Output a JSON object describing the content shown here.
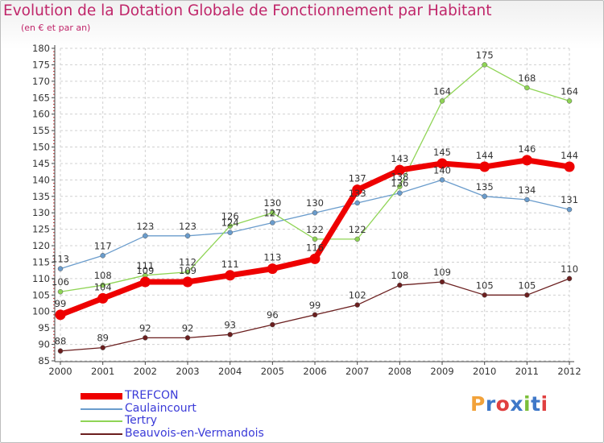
{
  "title": "Evolution de la Dotation Globale de Fonctionnement par Habitant",
  "subtitle": "(en € et par an)",
  "logo_text": "Proxiti",
  "colors": {
    "title": "#c0266a",
    "legend_text": "#3a3ad8",
    "grid": "#d0d0d0",
    "axis": "#444444",
    "label_text": "#333333"
  },
  "chart_data": {
    "type": "line",
    "x": [
      "2000",
      "2001",
      "2002",
      "2003",
      "2004",
      "2005",
      "2006",
      "2007",
      "2008",
      "2009",
      "2010",
      "2011",
      "2012"
    ],
    "ylim": [
      85,
      180
    ],
    "yticks": [
      85,
      90,
      95,
      100,
      105,
      110,
      115,
      120,
      125,
      130,
      135,
      140,
      145,
      150,
      155,
      160,
      165,
      170,
      175,
      180
    ],
    "grid": true,
    "legend_position": "bottom-left",
    "series": [
      {
        "name": "TREFCON",
        "color": "#ee0000",
        "values": [
          99,
          104,
          109,
          109,
          111,
          113,
          116,
          137,
          143,
          145,
          144,
          146,
          144
        ]
      },
      {
        "name": "Caulaincourt",
        "color": "#6a9ccc",
        "values": [
          113,
          117,
          123,
          123,
          124,
          127,
          130,
          133,
          136,
          140,
          135,
          134,
          131
        ]
      },
      {
        "name": "Tertry",
        "color": "#8fd455",
        "values": [
          106,
          108,
          111,
          112,
          126,
          130,
          122,
          122,
          138,
          164,
          175,
          168,
          164
        ]
      },
      {
        "name": "Beauvois-en-Vermandois",
        "color": "#6b1f1f",
        "values": [
          88,
          89,
          92,
          92,
          93,
          96,
          99,
          102,
          108,
          109,
          105,
          105,
          110
        ]
      }
    ]
  }
}
